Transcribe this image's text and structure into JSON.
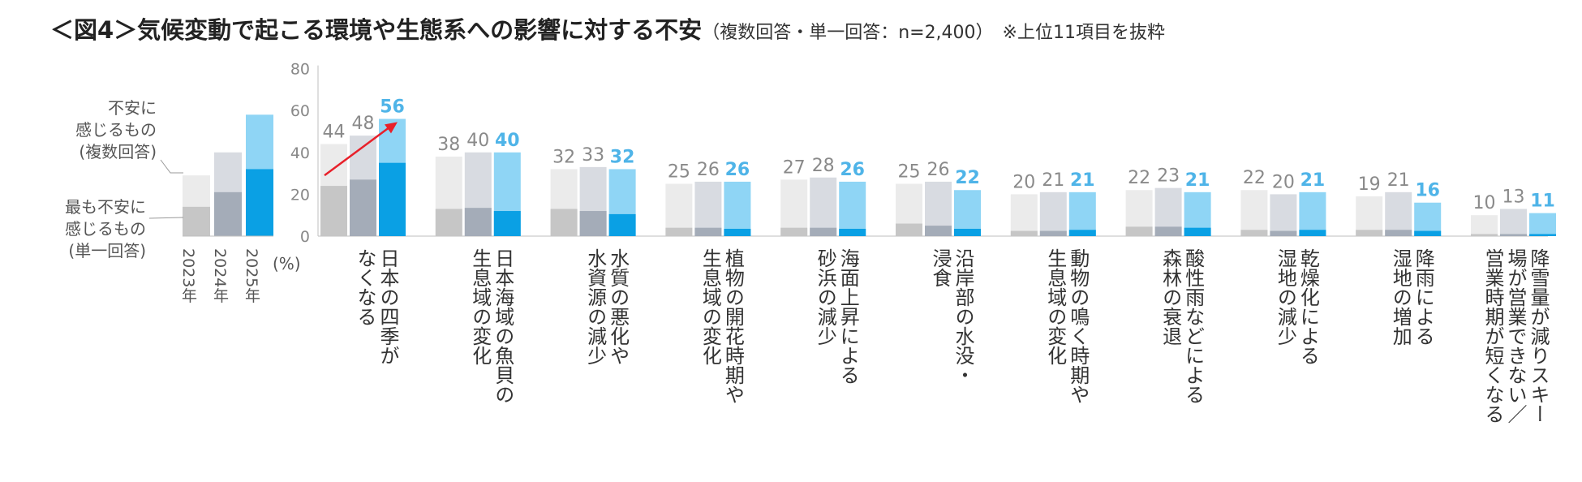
{
  "title": "＜図4＞気候変動で起こる環境や生態系への影響に対する不安",
  "title_note": "（複数回答・単一回答：n=2,400）　※上位11項目を抜粋",
  "chart_data": {
    "type": "bar",
    "ylabel": "(%)",
    "ylim": [
      0,
      80
    ],
    "yticks": [
      "0",
      "20",
      "40",
      "60",
      "80"
    ],
    "legend": {
      "multi_label": "不安に\n感じるもの\n(複数回答)",
      "single_label": "最も不安に\n感じるもの\n(単一回答)",
      "years": [
        "2023年",
        "2024年",
        "2025年"
      ],
      "sample_multi": [
        29,
        40,
        58
      ],
      "sample_single": [
        14,
        21,
        32
      ]
    },
    "series": [
      {
        "name": "2023年",
        "color_multi": "#ebebeb",
        "color_single": "#c6c6c6"
      },
      {
        "name": "2024年",
        "color_multi": "#d8dbe1",
        "color_single": "#a4acb8"
      },
      {
        "name": "2025年",
        "color_multi": "#8fd5f5",
        "color_single": "#0aa0e4"
      }
    ],
    "categories": [
      {
        "label": "日本の四季が\nなくなる",
        "multi": [
          44,
          48,
          56
        ],
        "single": [
          24,
          27,
          35
        ]
      },
      {
        "label": "日本海域の魚貝の\n生息域の変化",
        "multi": [
          38,
          40,
          40
        ],
        "single": [
          13,
          13.5,
          12
        ]
      },
      {
        "label": "水質の悪化や\n水資源の減少",
        "multi": [
          32,
          33,
          32
        ],
        "single": [
          13,
          12,
          10.5
        ]
      },
      {
        "label": "植物の開花時期や\n生息域の変化",
        "multi": [
          25,
          26,
          26
        ],
        "single": [
          4,
          4,
          3.5
        ]
      },
      {
        "label": "海面上昇による\n砂浜の減少",
        "multi": [
          27,
          28,
          26
        ],
        "single": [
          4,
          4,
          3.5
        ]
      },
      {
        "label": "沿岸部の水没・\n浸食",
        "multi": [
          25,
          26,
          22
        ],
        "single": [
          6,
          5,
          3.5
        ]
      },
      {
        "label": "動物の鳴く時期や\n生息域の変化",
        "multi": [
          20,
          21,
          21
        ],
        "single": [
          2.5,
          2.5,
          3
        ]
      },
      {
        "label": "酸性雨などによる\n森林の衰退",
        "multi": [
          22,
          23,
          21
        ],
        "single": [
          4.5,
          4.5,
          4
        ]
      },
      {
        "label": "乾燥化による\n湿地の減少",
        "multi": [
          22,
          20,
          21
        ],
        "single": [
          3,
          2.5,
          3
        ]
      },
      {
        "label": "降雨による\n湿地の増加",
        "multi": [
          19,
          21,
          16
        ],
        "single": [
          3,
          3,
          2.5
        ]
      },
      {
        "label": "降雪量が減りスキー\n場が営業できない／\n営業時期が短くなる",
        "multi": [
          10,
          13,
          11
        ],
        "single": [
          1,
          1,
          1
        ]
      }
    ]
  }
}
